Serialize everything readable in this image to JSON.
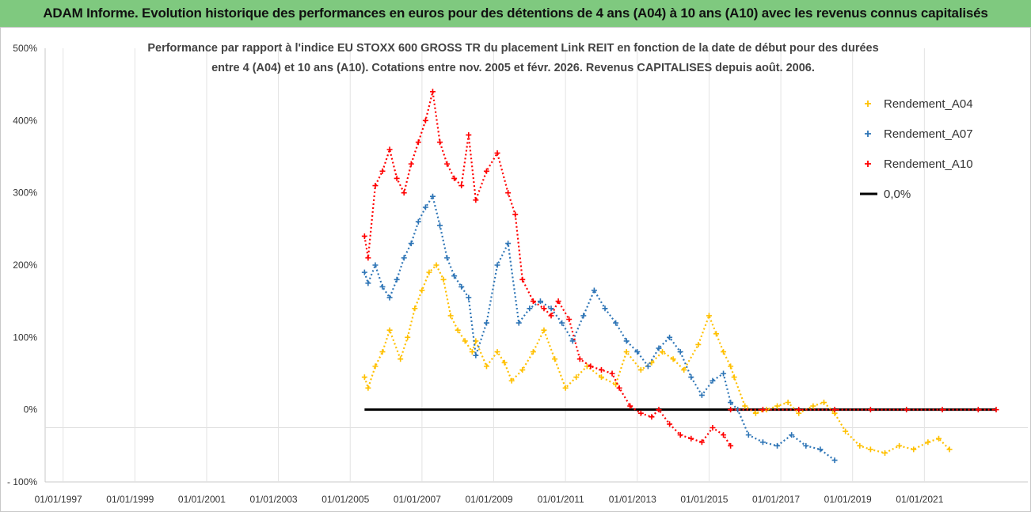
{
  "header": {
    "title": "ADAM Informe. Evolution historique des performances en euros pour des détentions de 4 ans (A04) à 10 ans (A10) avec les revenus connus capitalisés"
  },
  "colors": {
    "banner": "#7fc97f",
    "A04": "#ffc000",
    "A07": "#2e75b6",
    "A10": "#ff0000",
    "zero": "#000000"
  },
  "chart_data": {
    "type": "scatter",
    "title_lines": [
      "Performance par rapport à l'indice EU STOXX 600 GROSS TR  du placement Link REIT en fonction de la date de début pour des durées",
      "entre 4 (A04) et 10 ans (A10). Cotations entre nov. 2005 et févr. 2026. Revenus CAPITALISES depuis août. 2006."
    ],
    "xlabel": "",
    "ylabel": "",
    "x_range": [
      1997.0,
      2023.5
    ],
    "ylim": [
      -100,
      500
    ],
    "x_tick_years": [
      1997,
      1999,
      2001,
      2003,
      2005,
      2007,
      2009,
      2011,
      2013,
      2015,
      2017,
      2019,
      2021
    ],
    "x_tick_labels": [
      "01/01/1997",
      "01/01/1999",
      "01/01/2001",
      "01/01/2003",
      "01/01/2005",
      "01/01/2007",
      "01/01/2009",
      "01/01/2011",
      "01/01/2013",
      "01/01/2015",
      "01/01/2017",
      "01/01/2019",
      "01/01/2021"
    ],
    "y_ticks": [
      -100,
      0,
      100,
      200,
      300,
      400,
      500
    ],
    "y_tick_labels": [
      "- 100%",
      "0%",
      "100%",
      "200%",
      "300%",
      "400%",
      "500%"
    ],
    "grid": "vertical",
    "legend_position": "top-right",
    "series": [
      {
        "name": "Rendement_A04",
        "key": "A04",
        "marker": "+",
        "x": [
          2005.9,
          2006.0,
          2006.2,
          2006.4,
          2006.6,
          2006.9,
          2007.1,
          2007.3,
          2007.5,
          2007.7,
          2007.9,
          2008.1,
          2008.3,
          2008.5,
          2008.7,
          2008.9,
          2009.0,
          2009.3,
          2009.6,
          2009.8,
          2010.0,
          2010.3,
          2010.6,
          2010.9,
          2011.2,
          2011.5,
          2011.8,
          2012.1,
          2012.5,
          2012.9,
          2013.2,
          2013.6,
          2013.9,
          2014.2,
          2014.5,
          2014.8,
          2015.2,
          2015.5,
          2015.7,
          2015.9,
          2016.1,
          2016.2,
          2016.5,
          2016.8,
          2017.1,
          2017.4,
          2017.7,
          2018.0,
          2018.4,
          2018.7,
          2019.0,
          2019.3,
          2019.7,
          2020.0,
          2020.4,
          2020.8,
          2021.2,
          2021.6,
          2021.9,
          2022.2
        ],
        "y": [
          45,
          30,
          60,
          80,
          110,
          70,
          100,
          140,
          165,
          190,
          200,
          180,
          130,
          110,
          95,
          80,
          95,
          60,
          80,
          65,
          40,
          55,
          80,
          110,
          70,
          30,
          45,
          60,
          45,
          35,
          80,
          55,
          65,
          80,
          70,
          55,
          90,
          130,
          105,
          80,
          60,
          45,
          5,
          -5,
          0,
          5,
          10,
          -5,
          5,
          10,
          -5,
          -30,
          -50,
          -55,
          -60,
          -50,
          -55,
          -45,
          -40,
          -55
        ]
      },
      {
        "name": "Rendement_A07",
        "key": "A07",
        "marker": "+",
        "x": [
          2005.9,
          2006.0,
          2006.2,
          2006.4,
          2006.6,
          2006.8,
          2007.0,
          2007.2,
          2007.4,
          2007.6,
          2007.8,
          2008.0,
          2008.2,
          2008.4,
          2008.6,
          2008.8,
          2009.0,
          2009.3,
          2009.6,
          2009.9,
          2010.2,
          2010.5,
          2010.8,
          2011.1,
          2011.4,
          2011.7,
          2012.0,
          2012.3,
          2012.6,
          2012.9,
          2013.2,
          2013.5,
          2013.8,
          2014.1,
          2014.4,
          2014.7,
          2015.0,
          2015.3,
          2015.6,
          2015.9,
          2016.1,
          2016.3,
          2016.6,
          2017.0,
          2017.4,
          2017.8,
          2018.2,
          2018.6,
          2019.0
        ],
        "y": [
          190,
          175,
          200,
          170,
          155,
          180,
          210,
          230,
          260,
          280,
          295,
          255,
          210,
          185,
          170,
          155,
          75,
          120,
          200,
          230,
          120,
          140,
          150,
          140,
          120,
          95,
          130,
          165,
          140,
          120,
          95,
          80,
          60,
          85,
          100,
          80,
          45,
          20,
          40,
          50,
          10,
          0,
          -35,
          -45,
          -50,
          -35,
          -50,
          -55,
          -70
        ]
      },
      {
        "name": "Rendement_A10",
        "key": "A10",
        "marker": "+",
        "x": [
          2005.9,
          2006.0,
          2006.2,
          2006.4,
          2006.6,
          2006.8,
          2007.0,
          2007.2,
          2007.4,
          2007.6,
          2007.8,
          2008.0,
          2008.2,
          2008.4,
          2008.6,
          2008.8,
          2009.0,
          2009.3,
          2009.6,
          2009.9,
          2010.1,
          2010.3,
          2010.6,
          2010.9,
          2011.1,
          2011.3,
          2011.6,
          2011.9,
          2012.2,
          2012.5,
          2012.8,
          2013.0,
          2013.3,
          2013.6,
          2013.9,
          2014.1,
          2014.4,
          2014.7,
          2015.0,
          2015.3,
          2015.6,
          2015.9,
          2016.1
        ],
        "y": [
          240,
          210,
          310,
          330,
          360,
          320,
          300,
          340,
          370,
          400,
          440,
          370,
          340,
          320,
          310,
          380,
          290,
          330,
          355,
          300,
          270,
          180,
          150,
          140,
          130,
          150,
          125,
          70,
          60,
          55,
          50,
          30,
          5,
          -5,
          -10,
          0,
          -20,
          -35,
          -40,
          -45,
          -25,
          -35,
          -50
        ]
      },
      {
        "name": "Rendement_A10",
        "key": "A10",
        "marker": "+",
        "x": [
          2016.1,
          2017.0,
          2018.0,
          2019.0,
          2020.0,
          2021.0,
          2022.0,
          2023.0,
          2023.5
        ],
        "y": [
          0,
          0,
          0,
          0,
          0,
          0,
          0,
          0,
          0
        ]
      }
    ],
    "reference_line": {
      "name": "0,0%",
      "key": "zero",
      "x": [
        2005.9,
        2023.5
      ],
      "y": [
        0,
        0
      ]
    },
    "legend": [
      {
        "label": "Rendement_A04",
        "key": "A04",
        "type": "marker"
      },
      {
        "label": "Rendement_A07",
        "key": "A07",
        "type": "marker"
      },
      {
        "label": "Rendement_A10",
        "key": "A10",
        "type": "marker"
      },
      {
        "label": "0,0%",
        "key": "zero",
        "type": "line"
      }
    ]
  }
}
